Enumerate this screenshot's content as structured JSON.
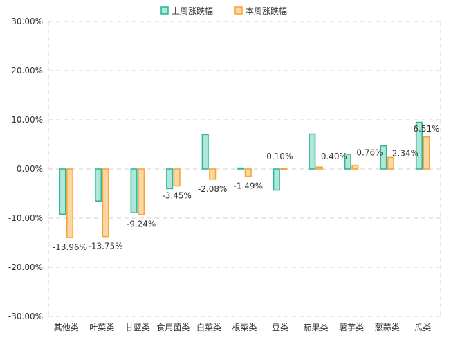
{
  "chart_data": {
    "type": "bar",
    "categories": [
      "其他类",
      "叶菜类",
      "甘蓝类",
      "食用菌类",
      "白菜类",
      "根菜类",
      "豆类",
      "茄果类",
      "薯芋类",
      "葱蒜类",
      "瓜类"
    ],
    "series": [
      {
        "name": "上周涨跌幅",
        "values": [
          -9.2,
          -6.5,
          -8.9,
          -4.0,
          7.0,
          0.2,
          -4.3,
          7.1,
          3.0,
          4.7,
          9.5
        ],
        "color": "#2bb99b",
        "fill": "#b2e6d8"
      },
      {
        "name": "本周涨跌幅",
        "values": [
          -13.96,
          -13.75,
          -9.24,
          -3.45,
          -2.08,
          -1.49,
          0.1,
          0.4,
          0.76,
          2.34,
          6.51
        ],
        "labels": [
          "-13.96%",
          "-13.75%",
          "-9.24%",
          "-3.45%",
          "-2.08%",
          "-1.49%",
          "0.10%",
          "0.40%",
          "0.76%",
          "2.34%",
          "6.51%"
        ],
        "color": "#f5a63a",
        "fill": "#fcd7a4"
      }
    ],
    "y_ticks": [
      "-30.00%",
      "-20.00%",
      "-10.00%",
      "0.00%",
      "10.00%",
      "20.00%",
      "30.00%"
    ],
    "ylim": [
      -30,
      30
    ],
    "grid": true,
    "legend": "top-center"
  }
}
